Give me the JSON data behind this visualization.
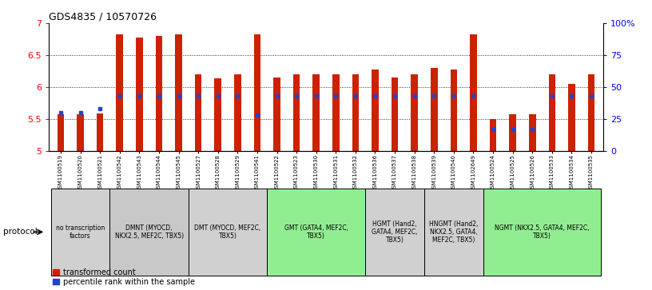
{
  "title": "GDS4835 / 10570726",
  "samples": [
    "GSM1100519",
    "GSM1100520",
    "GSM1100521",
    "GSM1100542",
    "GSM1100543",
    "GSM1100544",
    "GSM1100545",
    "GSM1100527",
    "GSM1100528",
    "GSM1100529",
    "GSM1100541",
    "GSM1100522",
    "GSM1100523",
    "GSM1100530",
    "GSM1100531",
    "GSM1100532",
    "GSM1100536",
    "GSM1100537",
    "GSM1100538",
    "GSM1100539",
    "GSM1100540",
    "GSM1102649",
    "GSM1100524",
    "GSM1100525",
    "GSM1100526",
    "GSM1100533",
    "GSM1100534",
    "GSM1100535"
  ],
  "transformed_count": [
    5.57,
    5.57,
    5.59,
    6.82,
    6.77,
    6.8,
    6.83,
    6.2,
    6.14,
    6.2,
    6.83,
    6.15,
    6.2,
    6.2,
    6.2,
    6.2,
    6.27,
    6.15,
    6.2,
    6.3,
    6.27,
    6.83,
    5.5,
    5.57,
    5.57,
    6.2,
    6.05,
    6.2
  ],
  "percentile_rank": [
    30,
    30,
    33,
    43,
    43,
    43,
    43,
    43,
    43,
    43,
    28,
    43,
    43,
    43,
    43,
    43,
    43,
    43,
    43,
    43,
    43,
    43,
    17,
    17,
    17,
    43,
    43,
    43
  ],
  "protocol_groups": [
    {
      "label": "no transcription\nfactors",
      "start": 0,
      "end": 3,
      "color": "#d0d0d0"
    },
    {
      "label": "DMNT (MYOCD,\nNKX2.5, MEF2C, TBX5)",
      "start": 3,
      "end": 7,
      "color": "#c8c8c8"
    },
    {
      "label": "DMT (MYOCD, MEF2C,\nTBX5)",
      "start": 7,
      "end": 11,
      "color": "#d0d0d0"
    },
    {
      "label": "GMT (GATA4, MEF2C,\nTBX5)",
      "start": 11,
      "end": 16,
      "color": "#90ee90"
    },
    {
      "label": "HGMT (Hand2,\nGATA4, MEF2C,\nTBX5)",
      "start": 16,
      "end": 19,
      "color": "#d0d0d0"
    },
    {
      "label": "HNGMT (Hand2,\nNKX2.5, GATA4,\nMEF2C, TBX5)",
      "start": 19,
      "end": 22,
      "color": "#d0d0d0"
    },
    {
      "label": "NGMT (NKX2.5, GATA4, MEF2C,\nTBX5)",
      "start": 22,
      "end": 28,
      "color": "#90ee90"
    }
  ],
  "bar_color": "#cc2200",
  "marker_color": "#2244cc",
  "ymin": 5.0,
  "ymax": 7.0,
  "yticks": [
    5.0,
    5.5,
    6.0,
    6.5,
    7.0
  ],
  "right_yticks": [
    0,
    25,
    50,
    75,
    100
  ],
  "right_ylabels": [
    "0",
    "25",
    "50",
    "75",
    "100%"
  ],
  "bar_width": 0.35
}
